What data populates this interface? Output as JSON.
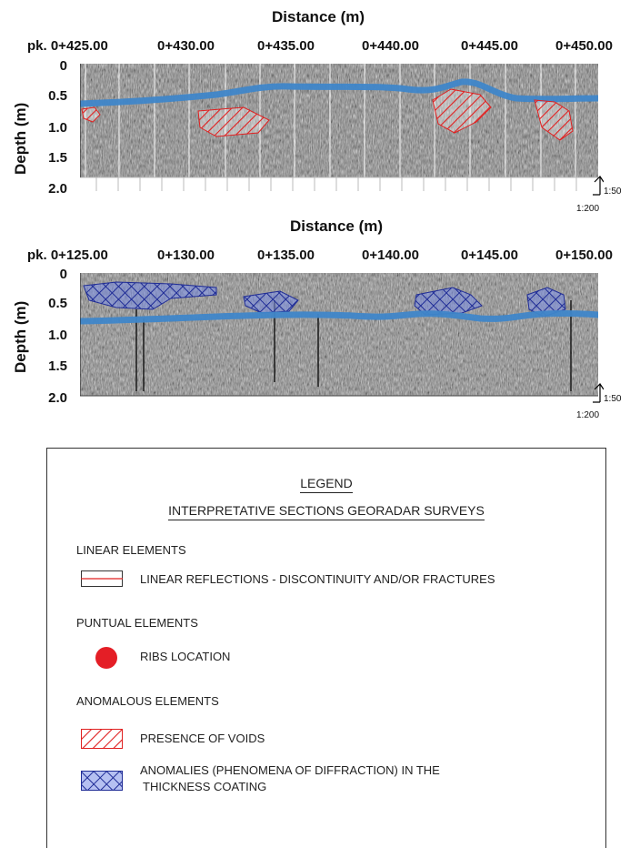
{
  "section1": {
    "xlabel": "Distance (m)",
    "ylabel": "Depth (m)",
    "ticks": [
      "pk. 0+425.00",
      "0+430.00",
      "0+435.00",
      "0+440.00",
      "0+445.00",
      "0+450.00"
    ],
    "depths": [
      "0",
      "0.5",
      "1.0",
      "1.5",
      "2.0"
    ],
    "scale_v": "1:50",
    "scale_h": "1:200"
  },
  "section2": {
    "xlabel": "Distance (m)",
    "ylabel": "Depth (m)",
    "ticks": [
      "pk. 0+125.00",
      "0+130.00",
      "0+135.00",
      "0+140.00",
      "0+145.00",
      "0+150.00"
    ],
    "depths": [
      "0",
      "0.5",
      "1.0",
      "1.5",
      "2.0"
    ],
    "scale_v": "1:50",
    "scale_h": "1:200"
  },
  "legend": {
    "title": "LEGEND",
    "subtitle": "INTERPRETATIVE SECTIONS GEORADAR SURVEYS",
    "linear_heading": "LINEAR ELEMENTS",
    "linear_item": "LINEAR REFLECTIONS - DISCONTINUITY AND/OR FRACTURES",
    "puntual_heading": "PUNTUAL ELEMENTS",
    "puntual_item": "RIBS LOCATION",
    "anomalous_heading": "ANOMALOUS ELEMENTS",
    "voids_item": "PRESENCE OF VOIDS",
    "anomalies_item_line1": "ANOMALIES (PHENOMENA OF DIFFRACTION) IN THE",
    "anomalies_item_line2": "THICKNESS COATING"
  },
  "colors": {
    "interface_line": "#3f86c9",
    "voids": "#e02020",
    "anomalies": "#2b3aa8",
    "rib": "#e41e26"
  }
}
